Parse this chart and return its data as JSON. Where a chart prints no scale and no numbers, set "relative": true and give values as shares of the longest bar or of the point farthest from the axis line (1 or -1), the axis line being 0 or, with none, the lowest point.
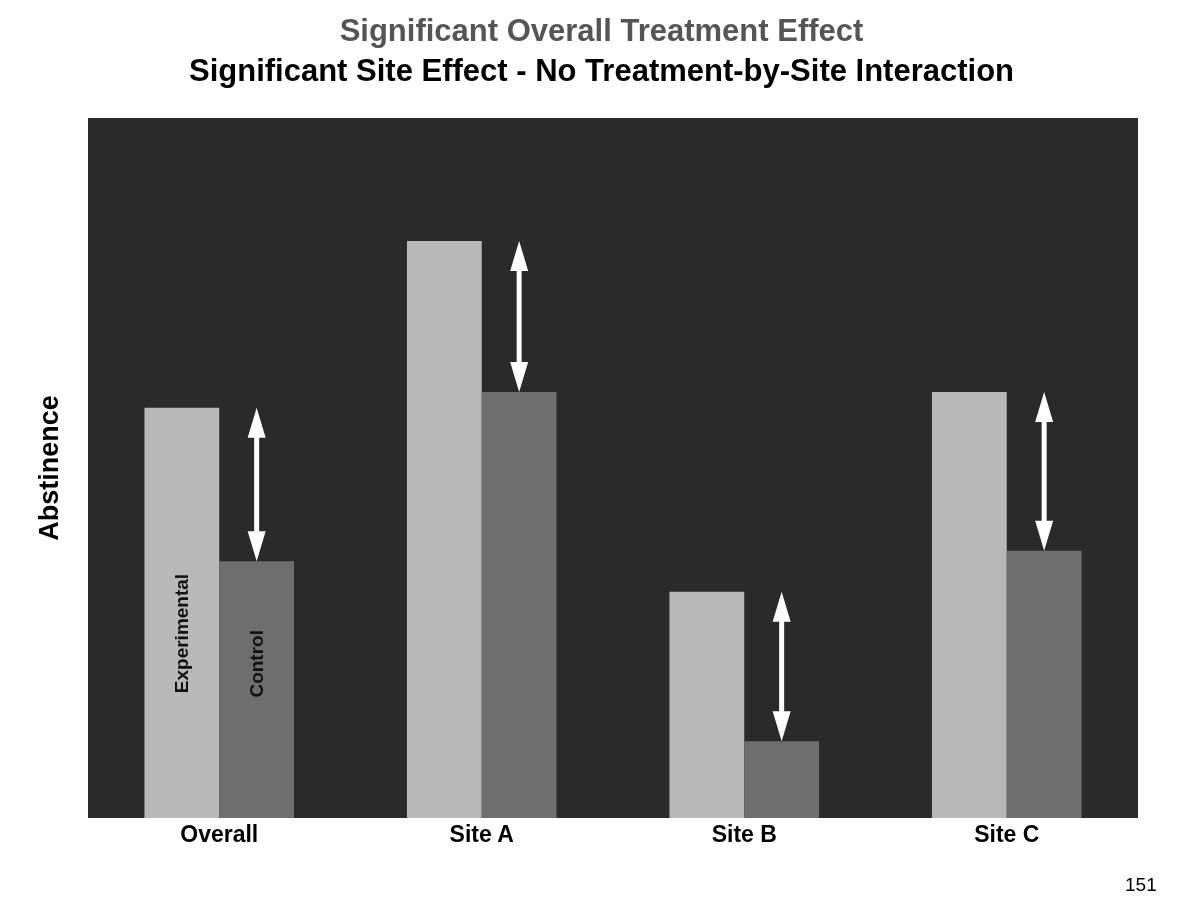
{
  "chart_data": {
    "type": "bar",
    "title": "Significant Overall Treatment Effect",
    "subtitle": "Significant Site Effect - No Treatment-by-Site Interaction",
    "ylabel": "Abstinence",
    "relative": true,
    "categories": [
      "Overall",
      "Site A",
      "Site B",
      "Site C"
    ],
    "series": [
      {
        "name": "Experimental",
        "color": "#b8b8b8",
        "values": [
          0.711,
          1,
          0.392,
          0.738
        ]
      },
      {
        "name": "Control",
        "color": "#6e6e6e",
        "values": [
          0.445,
          0.738,
          0.133,
          0.463
        ]
      }
    ],
    "legend": false,
    "annotations": [
      "151"
    ]
  }
}
